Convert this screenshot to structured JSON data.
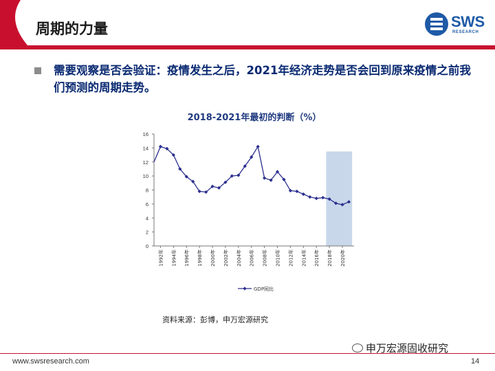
{
  "slide": {
    "title": "周期的力量",
    "logo_text": "SWS",
    "logo_sub": "RESEARCH",
    "bullet": "需要观察是否会验证：疫情发生之后，2021年经济走势是否会回到原来疫情之前我们预测的周期走势。",
    "source": "资料来源：彭博，申万宏源研究",
    "footer_url": "www.swsresearch.com",
    "wechat": "申万宏源固收研究",
    "page_number": "14"
  },
  "colors": {
    "accent_red": "#c8102e",
    "series": "#2b2f8f",
    "shade": "#c9d7ea",
    "brand_blue": "#1f5aa6"
  },
  "chart_data": {
    "type": "line",
    "title": "2018-2021年最初的判断（%）",
    "x": [
      1992,
      1993,
      1994,
      1995,
      1996,
      1997,
      1998,
      1999,
      2000,
      2001,
      2002,
      2003,
      2004,
      2005,
      2006,
      2007,
      2008,
      2009,
      2010,
      2011,
      2012,
      2013,
      2014,
      2015,
      2016,
      2017,
      2018,
      2019,
      2020,
      2021
    ],
    "x_tick_labels": [
      "1992年",
      "1994年",
      "1996年",
      "1998年",
      "2000年",
      "2002年",
      "2004年",
      "2006年",
      "2008年",
      "2010年",
      "2012年",
      "2014年",
      "2016年",
      "2018年",
      "2020年"
    ],
    "series": [
      {
        "name": "GDP同比",
        "values": [
          14.2,
          13.9,
          13.0,
          11.0,
          9.9,
          9.2,
          7.8,
          7.7,
          8.5,
          8.3,
          9.1,
          10.0,
          10.1,
          11.4,
          12.7,
          14.2,
          9.7,
          9.4,
          10.6,
          9.5,
          7.9,
          7.8,
          7.4,
          7.0,
          6.8,
          6.9,
          6.7,
          6.1,
          5.9,
          6.3
        ]
      }
    ],
    "start_value_1991": 12.0,
    "shaded_range": [
      2018,
      2021
    ],
    "ylim": [
      0,
      16
    ],
    "yticks": [
      0,
      2,
      4,
      6,
      8,
      10,
      12,
      14,
      16
    ],
    "legend_position": "bottom"
  }
}
